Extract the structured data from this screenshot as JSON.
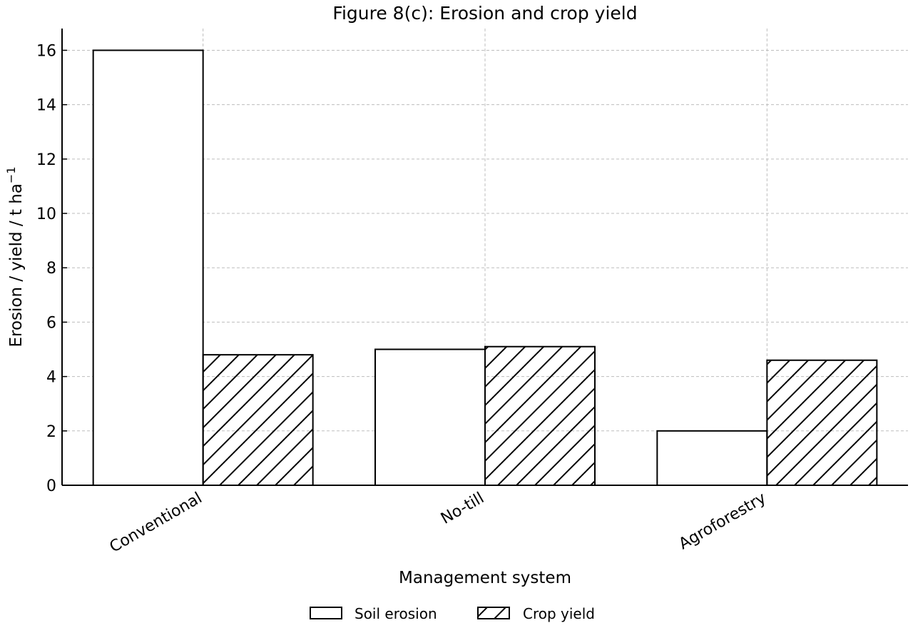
{
  "chart_data": {
    "type": "bar",
    "title": "Figure 8(c): Erosion and crop yield",
    "xlabel": "Management system",
    "ylabel": "Erosion / yield / t ha",
    "ylabel_superscript": "−1",
    "categories": [
      "Conventional",
      "No-till",
      "Agroforestry"
    ],
    "series": [
      {
        "name": "Soil erosion",
        "values": [
          16.0,
          5.0,
          2.0
        ],
        "hatch": "none"
      },
      {
        "name": "Crop yield",
        "values": [
          4.8,
          5.1,
          4.6
        ],
        "hatch": "diagonal"
      }
    ],
    "ylim": [
      0,
      16.8
    ],
    "yticks": [
      0,
      2,
      4,
      6,
      8,
      10,
      12,
      14,
      16
    ],
    "grid": true,
    "legend_position": "bottom-center",
    "colors": {
      "bar_fill": "#ffffff",
      "bar_edge": "#000000",
      "grid": "#bdbdbd"
    }
  }
}
